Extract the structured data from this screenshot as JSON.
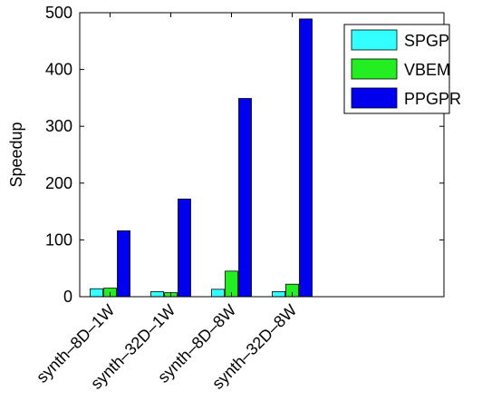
{
  "chart_data": {
    "type": "bar",
    "ylabel": "Speedup",
    "ylim": [
      0,
      500
    ],
    "yticks": [
      0,
      100,
      200,
      300,
      400,
      500
    ],
    "categories": [
      "synth–8D–1W",
      "synth–32D–1W",
      "synth–8D–8W",
      "synth–32D–8W"
    ],
    "x_slots": 6,
    "series": [
      {
        "name": "SPGP",
        "color": "#33ffff",
        "values": [
          14,
          9,
          13,
          9
        ]
      },
      {
        "name": "VBEM",
        "color": "#22ee22",
        "values": [
          15,
          7,
          45,
          22
        ]
      },
      {
        "name": "PPGPR",
        "color": "#0000ee",
        "values": [
          116,
          172,
          349,
          489
        ]
      }
    ],
    "legend_position": "top-right",
    "grid": false
  }
}
